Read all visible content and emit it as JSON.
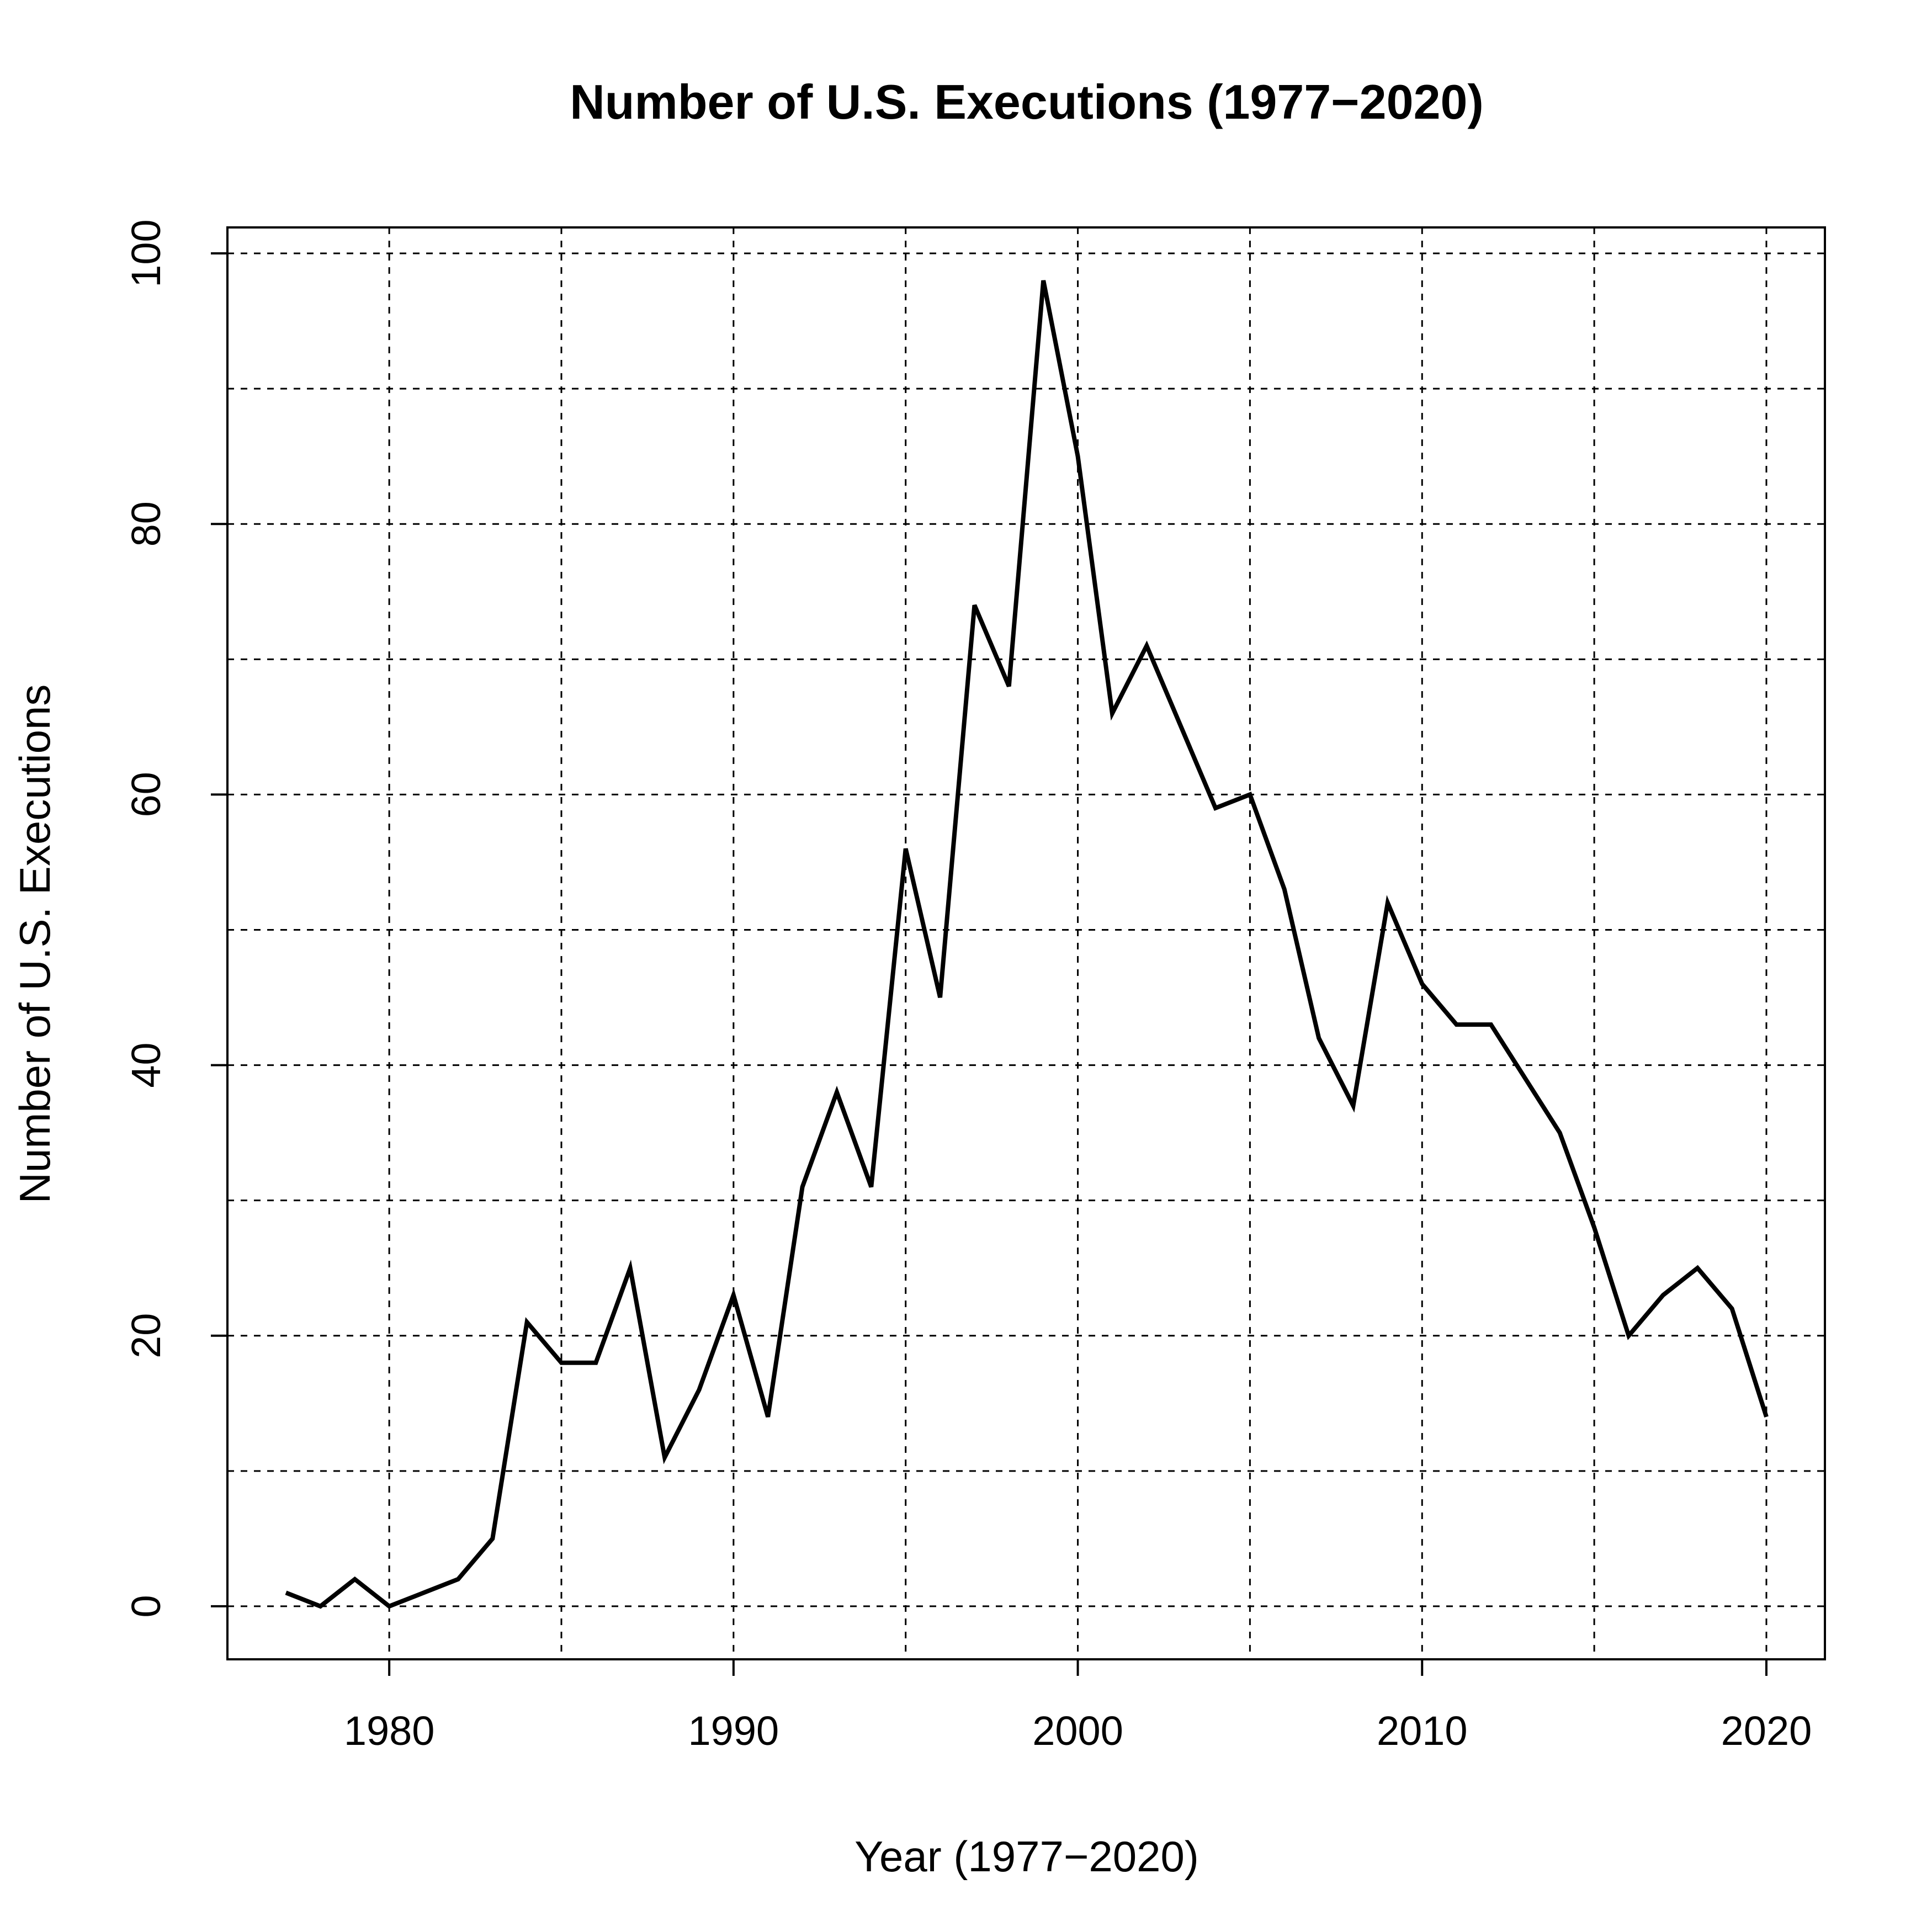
{
  "chart_data": {
    "type": "line",
    "title": "Number of U.S. Executions (1977−2020)",
    "xlabel": "Year (1977−2020)",
    "ylabel": "Number of U.S. Executions",
    "xlim": [
      1975.3,
      2021.7
    ],
    "ylim": [
      -3.92,
      101.92
    ],
    "x_ticks": [
      1980,
      1990,
      2000,
      2010,
      2020
    ],
    "x_tick_labels": [
      "1980",
      "1990",
      "2000",
      "2010",
      "2020"
    ],
    "y_ticks": [
      0,
      20,
      40,
      60,
      80,
      100
    ],
    "y_tick_labels": [
      "0",
      "20",
      "40",
      "60",
      "80",
      "100"
    ],
    "x_grid": [
      1980,
      1985,
      1990,
      1995,
      2000,
      2005,
      2010,
      2015,
      2020
    ],
    "y_grid": [
      0,
      10,
      20,
      30,
      40,
      50,
      60,
      70,
      80,
      90,
      100
    ],
    "grid": true,
    "series": [
      {
        "name": "Number of U.S. Executions",
        "color": "#000000",
        "x": [
          1977,
          1978,
          1979,
          1980,
          1981,
          1982,
          1983,
          1984,
          1985,
          1986,
          1987,
          1988,
          1989,
          1990,
          1991,
          1992,
          1993,
          1994,
          1995,
          1996,
          1997,
          1998,
          1999,
          2000,
          2001,
          2002,
          2003,
          2004,
          2005,
          2006,
          2007,
          2008,
          2009,
          2010,
          2011,
          2012,
          2013,
          2014,
          2015,
          2016,
          2017,
          2018,
          2019,
          2020
        ],
        "values": [
          1,
          0,
          2,
          0,
          1,
          2,
          5,
          21,
          18,
          18,
          25,
          11,
          16,
          23,
          14,
          31,
          38,
          31,
          56,
          45,
          74,
          68,
          98,
          85,
          66,
          71,
          65,
          59,
          60,
          53,
          42,
          37,
          52,
          46,
          43,
          43,
          39,
          35,
          28,
          20,
          23,
          25,
          22,
          14
        ]
      }
    ]
  }
}
